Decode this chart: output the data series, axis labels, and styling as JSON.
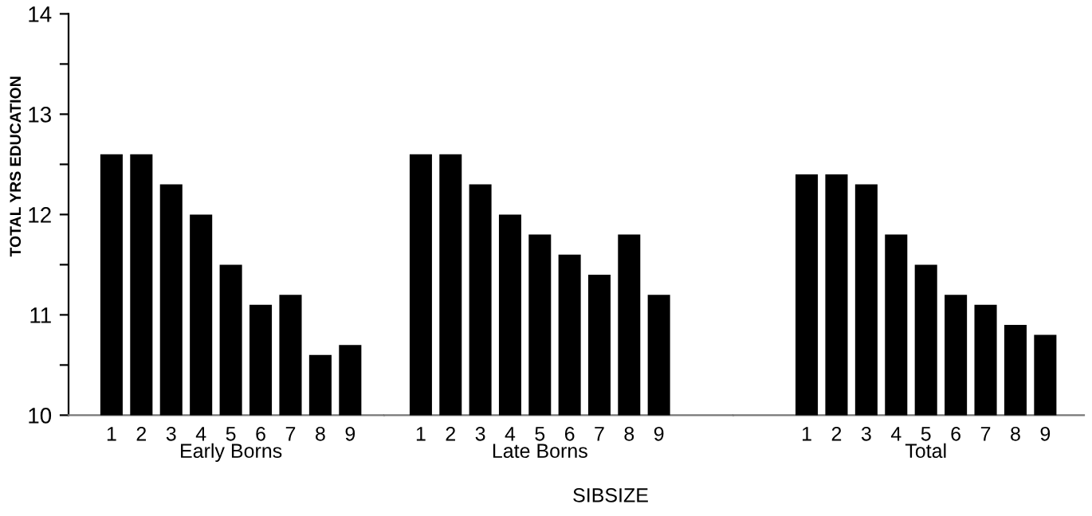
{
  "chart_data": [
    {
      "type": "bar",
      "xlabel": "Early Borns",
      "ylabel": "TOTAL YRS EDUCATION",
      "categories": [
        "1",
        "2",
        "3",
        "4",
        "5",
        "6",
        "7",
        "8",
        "9"
      ],
      "values": [
        12.6,
        12.6,
        12.3,
        12.0,
        11.5,
        11.1,
        11.2,
        10.6,
        10.7
      ],
      "color": "#000000",
      "ylim": [
        10,
        14
      ],
      "yticks": [
        10,
        {
          "value": 10.5,
          "label": null
        },
        11,
        {
          "value": 11.5,
          "label": null
        },
        12,
        {
          "value": 12.5,
          "label": null
        },
        13,
        {
          "value": 13.5,
          "label": null
        },
        14
      ],
      "grid": false,
      "legend": false
    },
    {
      "type": "bar",
      "xlabel": "Late Borns",
      "categories": [
        "1",
        "2",
        "3",
        "4",
        "5",
        "6",
        "7",
        "8",
        "9"
      ],
      "values": [
        12.6,
        12.6,
        12.3,
        12.0,
        11.8,
        11.6,
        11.4,
        11.8,
        11.2
      ],
      "color": "#000000",
      "ylim": [
        10,
        14
      ],
      "tick_labels": "x",
      "grid": false,
      "legend": false,
      "annotations": [
        "SIBSIZE"
      ]
    },
    {
      "type": "bar",
      "xlabel": "Total",
      "categories": [
        "1",
        "2",
        "3",
        "4",
        "5",
        "6",
        "7",
        "8",
        "9"
      ],
      "values": [
        12.4,
        12.4,
        12.3,
        11.8,
        11.5,
        11.2,
        11.1,
        10.9,
        10.8
      ],
      "color": "#000000",
      "ylim": [
        10,
        14
      ],
      "tick_labels": "x",
      "grid": false,
      "legend": false
    }
  ]
}
